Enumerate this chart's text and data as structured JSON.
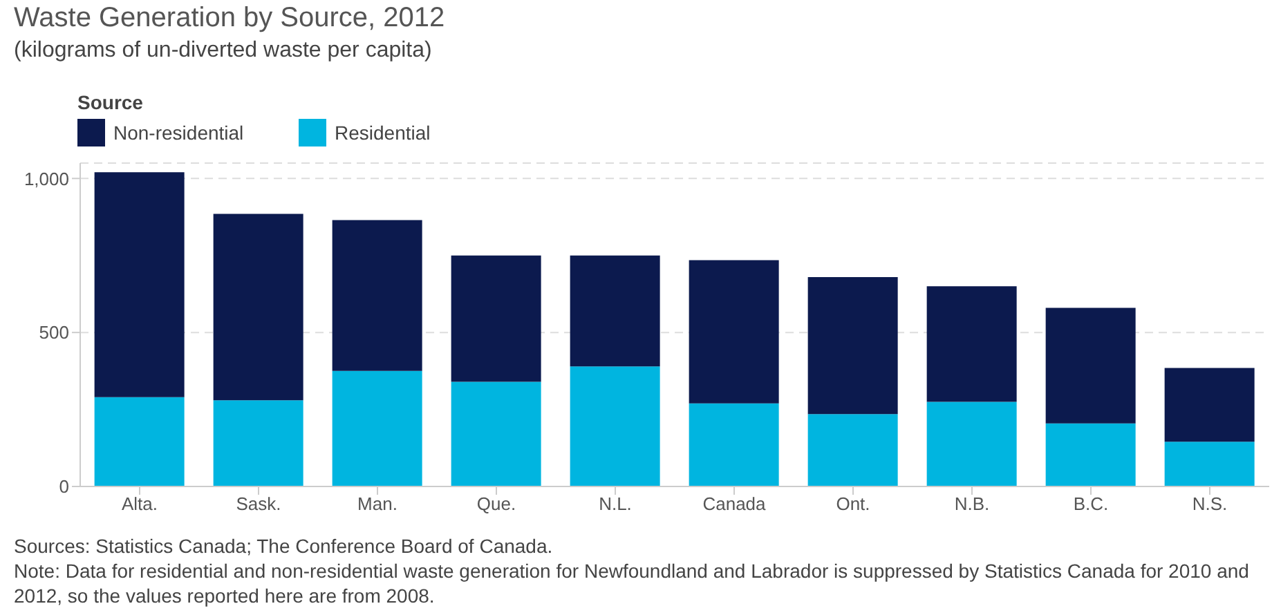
{
  "chart_data": {
    "type": "bar",
    "title": "Waste Generation by Source, 2012",
    "subtitle": "(kilograms of un-diverted waste per capita)",
    "legend_title": "Source",
    "categories": [
      "Alta.",
      "Sask.",
      "Man.",
      "Que.",
      "N.L.",
      "Canada",
      "Ont.",
      "N.B.",
      "B.C.",
      "N.S."
    ],
    "series": [
      {
        "name": "Residential",
        "color": "#00b5e0",
        "values": [
          290,
          280,
          375,
          340,
          390,
          270,
          235,
          275,
          205,
          145
        ]
      },
      {
        "name": "Non-residential",
        "color": "#0c1a4e",
        "values": [
          730,
          605,
          490,
          410,
          360,
          465,
          445,
          375,
          375,
          240
        ]
      }
    ],
    "stacked": true,
    "ylim": [
      0,
      1050
    ],
    "yticks": [
      0,
      500,
      {
        "value": 1000,
        "label": "1,000"
      }
    ],
    "grid": "y",
    "legend": "top left",
    "annotations": [
      "Sources: Statistics Canada; The Conference Board of Canada.",
      "Note: Data for residential and non-residential waste generation for Newfoundland and Labrador is suppressed by Statistics Canada for 2010 and 2012, so the values reported here are from 2008."
    ]
  }
}
